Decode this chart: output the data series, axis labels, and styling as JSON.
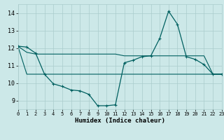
{
  "xlabel": "Humidex (Indice chaleur)",
  "x": [
    0,
    1,
    2,
    3,
    4,
    5,
    6,
    7,
    8,
    9,
    10,
    11,
    12,
    13,
    14,
    15,
    16,
    17,
    18,
    19,
    20,
    21,
    22,
    23
  ],
  "line1": [
    12.1,
    12.05,
    11.7,
    10.5,
    9.95,
    9.8,
    9.6,
    9.55,
    9.35,
    8.7,
    8.7,
    8.75,
    11.15,
    11.3,
    11.5,
    11.55,
    12.55,
    14.1,
    13.35,
    11.5,
    11.35,
    11.05,
    10.5,
    10.5
  ],
  "line2": [
    12.1,
    11.75,
    11.65,
    11.65,
    11.65,
    11.65,
    11.65,
    11.65,
    11.65,
    11.65,
    11.65,
    11.65,
    11.55,
    11.55,
    11.55,
    11.55,
    11.55,
    11.55,
    11.55,
    11.55,
    11.55,
    11.55,
    10.5,
    10.5
  ],
  "line3": [
    12.1,
    10.5,
    10.5,
    10.5,
    10.5,
    10.5,
    10.5,
    10.5,
    10.5,
    10.5,
    10.5,
    10.5,
    10.5,
    10.5,
    10.5,
    10.5,
    10.5,
    10.5,
    10.5,
    10.5,
    10.5,
    10.5,
    10.5,
    10.5
  ],
  "line_color": "#006060",
  "bg_color": "#cce8e8",
  "grid_color": "#aacccc",
  "xlim": [
    0,
    23
  ],
  "ylim": [
    8.5,
    14.5
  ],
  "yticks": [
    9,
    10,
    11,
    12,
    13,
    14
  ]
}
